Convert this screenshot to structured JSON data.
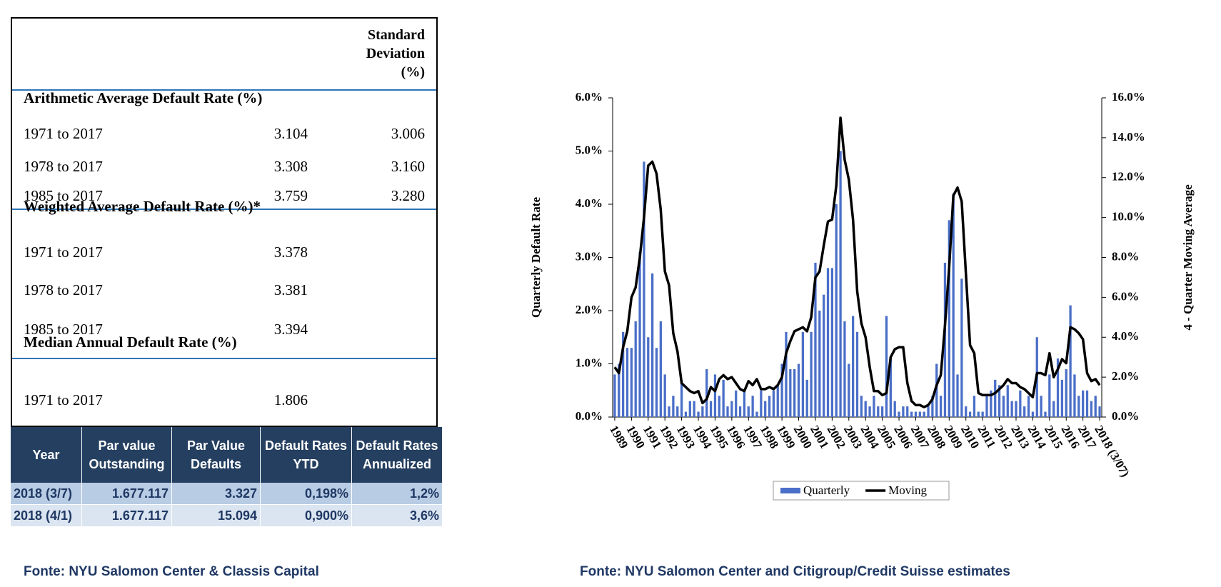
{
  "stats_table": {
    "header": "Standard Deviation (%)",
    "sections": [
      {
        "title": "Arithmetic Average Default Rate (%)",
        "rows": [
          [
            "1971 to 2017",
            "3.104",
            "3.006"
          ],
          [
            "1978 to 2017",
            "3.308",
            "3.160"
          ],
          [
            "1985 to 2017",
            "3.759",
            "3.280"
          ]
        ]
      },
      {
        "title": "Weighted Average Default Rate (%)*",
        "rows": [
          [
            "1971 to 2017",
            "3.378"
          ],
          [
            "1978 to 2017",
            "3.381"
          ],
          [
            "1985 to 2017",
            "3.394"
          ]
        ]
      },
      {
        "title": "Median Annual Default Rate (%)",
        "rows": [
          [
            "1971 to 2017",
            "1.806"
          ]
        ]
      }
    ]
  },
  "summary_table": {
    "headers": [
      "Year",
      "Par value Outstanding",
      "Par Value Defaults",
      "Default Rates YTD",
      "Default Rates Annualized"
    ],
    "rows": [
      [
        "2018 (3/7)",
        "1.677.117",
        "3.327",
        "0,198%",
        "1,2%"
      ],
      [
        "2018 (4/1)",
        "1.677.117",
        "15.094",
        "0,900%",
        "3,6%"
      ]
    ]
  },
  "sources": [
    "Fonte: NYU Salomon Center & Classis Capital",
    "Fonte: NYU Salomon Center and Citigroup/Credit Suisse estimates"
  ],
  "chart_data": {
    "type": "bar_line",
    "y_label": "Quarterly Default Rate",
    "y2_label": "4 - Quarter Moving Average",
    "categories": [
      "1989",
      null,
      null,
      null,
      "1990",
      null,
      null,
      null,
      "1991",
      null,
      null,
      null,
      "1992",
      null,
      null,
      null,
      "1993",
      null,
      null,
      null,
      "1994",
      null,
      null,
      null,
      "1995",
      null,
      null,
      null,
      "1996",
      null,
      null,
      null,
      "1997",
      null,
      null,
      null,
      "1998",
      null,
      null,
      null,
      "1999",
      null,
      null,
      null,
      "2000",
      null,
      null,
      null,
      "2001",
      null,
      null,
      null,
      "2002",
      null,
      null,
      null,
      "2003",
      null,
      null,
      null,
      "2004",
      null,
      null,
      null,
      "2005",
      null,
      null,
      null,
      "2006",
      null,
      null,
      null,
      "2007",
      null,
      null,
      null,
      "2008",
      null,
      null,
      null,
      "2009",
      null,
      null,
      null,
      "2010",
      null,
      null,
      null,
      "2011",
      null,
      null,
      null,
      "2012",
      null,
      null,
      null,
      "2013",
      null,
      null,
      null,
      "2014",
      null,
      null,
      null,
      "2015",
      null,
      null,
      null,
      "2016",
      null,
      null,
      null,
      "2017",
      null,
      null,
      null,
      "2018 (3/07)"
    ],
    "ylim": [
      0,
      6
    ],
    "yticks": [
      {
        "value": 0,
        "label": "0.0%"
      },
      {
        "value": 1,
        "label": "1.0%"
      },
      {
        "value": 2,
        "label": "2.0%"
      },
      {
        "value": 3,
        "label": "3.0%"
      },
      {
        "value": 4,
        "label": "4.0%"
      },
      {
        "value": 5,
        "label": "5.0%"
      },
      {
        "value": 6,
        "label": "6.0%"
      }
    ],
    "y2lim": [
      0,
      16
    ],
    "y2ticks": [
      {
        "value": 0,
        "label": "0.0%"
      },
      {
        "value": 2,
        "label": "2.0%"
      },
      {
        "value": 4,
        "label": "4.0%"
      },
      {
        "value": 6,
        "label": "6.0%"
      },
      {
        "value": 8,
        "label": "8.0%"
      },
      {
        "value": 10,
        "label": "10.0%"
      },
      {
        "value": 12,
        "label": "12.0%"
      },
      {
        "value": 14,
        "label": "14.0%"
      },
      {
        "value": 16,
        "label": "16.0%"
      }
    ],
    "legend": "bottom",
    "series": [
      {
        "name": "Quarterly",
        "kind": "bar",
        "color": "#4a6fc8",
        "values": [
          0.8,
          1.0,
          1.6,
          1.3,
          1.3,
          1.8,
          3.1,
          4.8,
          1.5,
          2.7,
          1.3,
          1.8,
          0.8,
          0.2,
          0.4,
          0.2,
          0.7,
          0.1,
          0.3,
          0.3,
          0.1,
          0.2,
          0.9,
          0.3,
          0.8,
          0.4,
          0.7,
          0.2,
          0.3,
          0.5,
          0.2,
          0.5,
          0.2,
          0.4,
          0.1,
          0.5,
          0.3,
          0.4,
          0.5,
          0.6,
          1.0,
          1.6,
          0.9,
          0.9,
          1.0,
          1.6,
          0.7,
          1.6,
          2.9,
          2.0,
          2.3,
          2.8,
          2.8,
          4.0,
          5.0,
          1.8,
          1.0,
          1.9,
          1.6,
          0.4,
          0.3,
          0.2,
          0.4,
          0.2,
          0.2,
          1.9,
          1.1,
          0.3,
          0.1,
          0.2,
          0.2,
          0.1,
          0.1,
          0.1,
          0.1,
          0.2,
          0.4,
          1.0,
          0.4,
          2.9,
          3.7,
          4.2,
          0.8,
          2.6,
          0.2,
          0.1,
          0.4,
          0.1,
          0.1,
          0.4,
          0.5,
          0.7,
          0.6,
          0.4,
          0.6,
          0.3,
          0.3,
          0.5,
          0.2,
          0.4,
          0.1,
          1.5,
          0.4,
          0.1,
          0.8,
          0.3,
          1.1,
          0.7,
          0.9,
          2.1,
          0.8,
          0.4,
          0.5,
          0.5,
          0.3,
          0.4,
          0.2
        ]
      },
      {
        "name": "Moving",
        "kind": "line",
        "axis": "y2",
        "color": "#000000",
        "values": [
          2.5,
          2.2,
          3.5,
          4.3,
          6.0,
          6.5,
          8.0,
          10.0,
          12.6,
          12.8,
          12.2,
          10.4,
          7.3,
          6.6,
          4.2,
          3.3,
          1.7,
          1.5,
          1.3,
          1.2,
          1.3,
          0.7,
          0.9,
          1.5,
          1.3,
          1.9,
          2.1,
          1.9,
          2.0,
          1.7,
          1.4,
          1.3,
          1.8,
          1.6,
          1.9,
          1.4,
          1.4,
          1.5,
          1.4,
          1.6,
          2.0,
          3.2,
          3.8,
          4.3,
          4.4,
          4.5,
          4.3,
          5.0,
          7.0,
          7.3,
          8.6,
          9.8,
          9.9,
          11.6,
          15.0,
          12.9,
          11.9,
          9.9,
          6.3,
          4.7,
          4.0,
          2.5,
          1.3,
          1.3,
          1.1,
          1.2,
          3.0,
          3.4,
          3.5,
          3.5,
          1.7,
          0.8,
          0.6,
          0.6,
          0.5,
          0.6,
          0.9,
          1.6,
          2.1,
          4.6,
          7.5,
          11.1,
          11.5,
          10.8,
          7.2,
          3.6,
          3.2,
          1.2,
          1.1,
          1.1,
          1.1,
          1.2,
          1.4,
          1.6,
          1.9,
          1.7,
          1.7,
          1.5,
          1.4,
          1.2,
          1.0,
          2.2,
          2.2,
          2.1,
          3.2,
          2.0,
          2.4,
          2.9,
          2.7,
          4.5,
          4.4,
          4.2,
          3.9,
          2.2,
          1.8,
          1.9,
          1.6
        ]
      }
    ]
  }
}
